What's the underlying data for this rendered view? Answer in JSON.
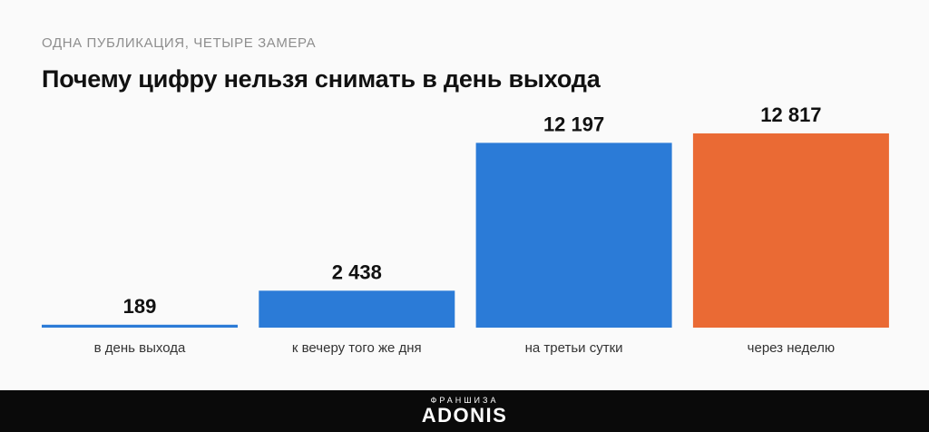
{
  "header": {
    "kicker": "ОДНА ПУБЛИКАЦИЯ, ЧЕТЫРЕ ЗАМЕРА",
    "title": "Почему цифру нельзя снимать в день выхода"
  },
  "chart_data": {
    "type": "bar",
    "categories": [
      "в день выхода",
      "к вечеру того же дня",
      "на третьи сутки",
      "через неделю"
    ],
    "values": [
      189,
      2438,
      12197,
      12817
    ],
    "value_labels": [
      "189",
      "2 438",
      "12 197",
      "12 817"
    ],
    "colors": [
      "#2b7bd7",
      "#2b7bd7",
      "#2b7bd7",
      "#ea6a34"
    ],
    "title": "Почему цифру нельзя снимать в день выхода",
    "ylim": [
      0,
      12817
    ],
    "grid": false,
    "legend": "none"
  },
  "footer": {
    "top_label": "ФРАНШИЗА",
    "brand": "ADONIS"
  }
}
